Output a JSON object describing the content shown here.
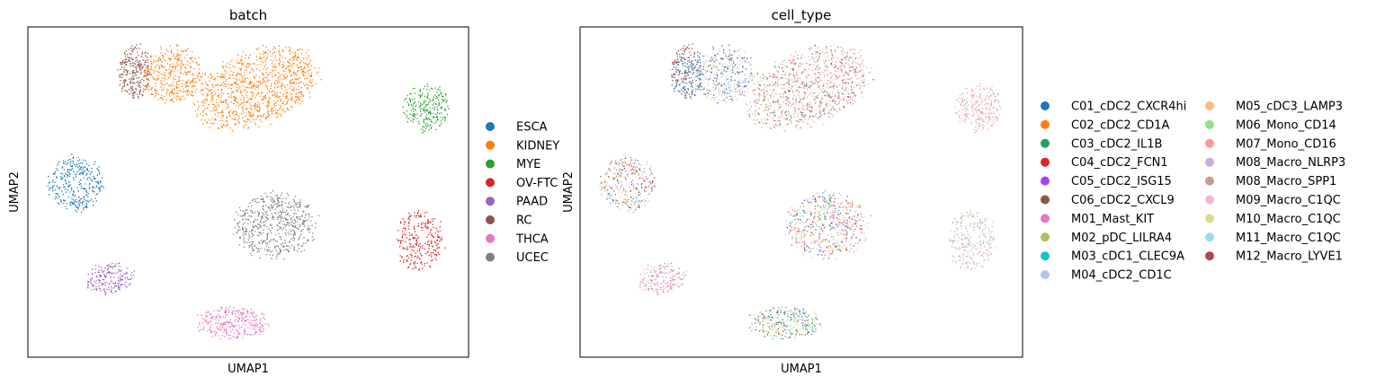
{
  "chart_data": [
    {
      "type": "scatter",
      "title": "batch",
      "xlabel": "UMAP1",
      "ylabel": "UMAP2",
      "ticks": false,
      "grid": false,
      "legend": "right",
      "series": [
        {
          "name": "ESCA",
          "color": "#1f77b4"
        },
        {
          "name": "KIDNEY",
          "color": "#ff7f0e"
        },
        {
          "name": "MYE",
          "color": "#2ca02c"
        },
        {
          "name": "OV-FTC",
          "color": "#d62728"
        },
        {
          "name": "PAAD",
          "color": "#9467bd"
        },
        {
          "name": "RC",
          "color": "#8c564b"
        },
        {
          "name": "THCA",
          "color": "#e377c2"
        },
        {
          "name": "UCEC",
          "color": "#7f7f7f"
        }
      ]
    },
    {
      "type": "scatter",
      "title": "cell_type",
      "xlabel": "UMAP1",
      "ylabel": "UMAP2",
      "ticks": false,
      "grid": false,
      "legend": "right",
      "series": [
        {
          "name": "C01_cDC2_CXCR4hi",
          "color": "#1f77b4"
        },
        {
          "name": "C02_cDC2_CD1A",
          "color": "#ff7f0e"
        },
        {
          "name": "C03_cDC2_IL1B",
          "color": "#279e68"
        },
        {
          "name": "C04_cDC2_FCN1",
          "color": "#d62728"
        },
        {
          "name": "C05_cDC2_ISG15",
          "color": "#aa40fc"
        },
        {
          "name": "C06_cDC2_CXCL9",
          "color": "#8c564b"
        },
        {
          "name": "M01_Mast_KIT",
          "color": "#e377c2"
        },
        {
          "name": "M02_pDC_LILRA4",
          "color": "#b5bd61"
        },
        {
          "name": "M03_cDC1_CLEC9A",
          "color": "#17becf"
        },
        {
          "name": "M04_cDC2_CD1C",
          "color": "#aec7e8"
        },
        {
          "name": "M05_cDC3_LAMP3",
          "color": "#ffbb78"
        },
        {
          "name": "M06_Mono_CD14",
          "color": "#98df8a"
        },
        {
          "name": "M07_Mono_CD16",
          "color": "#ff9896"
        },
        {
          "name": "M08_Macro_NLRP3",
          "color": "#c5b0d5"
        },
        {
          "name": "M08_Macro_SPP1",
          "color": "#c49c94"
        },
        {
          "name": "M09_Macro_C1QC",
          "color": "#f7b6d2"
        },
        {
          "name": "M10_Macro_C1QC",
          "color": "#dbdb8d"
        },
        {
          "name": "M11_Macro_C1QC",
          "color": "#9edae5"
        },
        {
          "name": "M12_Macro_LYVE1",
          "color": "#ad494a"
        }
      ]
    }
  ]
}
